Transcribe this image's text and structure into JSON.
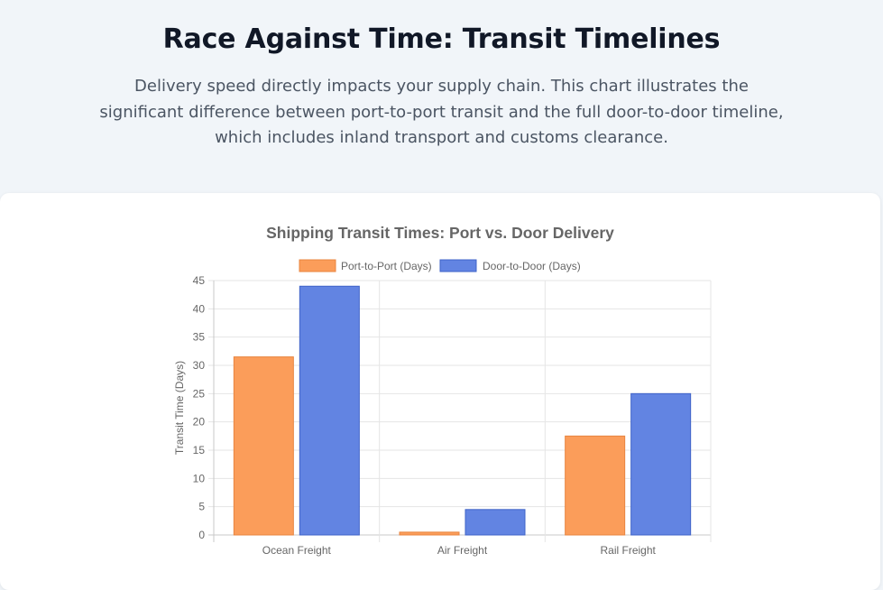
{
  "header": {
    "title": "Race Against Time: Transit Timelines",
    "description": "Delivery speed directly impacts your supply chain. This chart illustrates the significant difference between port-to-port transit and the full door-to-door timeline, which includes inland transport and customs clearance."
  },
  "colors": {
    "port": "#fb9d5a",
    "port_border": "#e8853f",
    "door": "#6284e2",
    "door_border": "#3f63c8"
  },
  "chart_data": {
    "type": "bar",
    "title": "Shipping Transit Times: Port vs. Door Delivery",
    "xlabel": "",
    "ylabel": "Transit Time (Days)",
    "categories": [
      "Ocean Freight",
      "Air Freight",
      "Rail Freight"
    ],
    "series": [
      {
        "name": "Port-to-Port (Days)",
        "values": [
          31.5,
          0.5,
          17.5
        ]
      },
      {
        "name": "Door-to-Door (Days)",
        "values": [
          44,
          4.5,
          25
        ]
      }
    ],
    "ylim": [
      0,
      45
    ],
    "yticks": [
      0,
      5,
      10,
      15,
      20,
      25,
      30,
      35,
      40,
      45
    ],
    "grid": true,
    "legend_position": "top-center"
  }
}
